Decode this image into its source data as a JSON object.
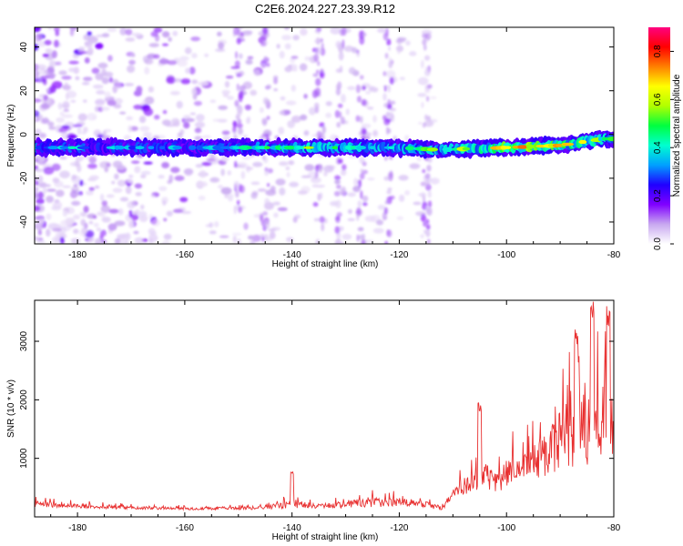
{
  "title": "C2E6.2024.227.23.39.R12",
  "chart_data": [
    {
      "id": "spectrogram",
      "type": "heatmap",
      "xlabel": "Height of straight line (km)",
      "ylabel": "Frequency (Hz)",
      "xlim": [
        -188,
        -80
      ],
      "ylim": [
        -50,
        49
      ],
      "xticks": [
        -180,
        -160,
        -140,
        -120,
        -100,
        -80
      ],
      "yticks": [
        -40,
        -20,
        0,
        20,
        40
      ],
      "colorbar": {
        "label": "Normalized spectral amplitude",
        "range": [
          0,
          0.9
        ],
        "ticks": [
          0.0,
          0.2,
          0.4,
          0.6,
          0.8
        ],
        "colormap": [
          "#ffffff",
          "#c8a8f0",
          "#8000ff",
          "#2000ff",
          "#00a0ff",
          "#00ffd0",
          "#00ff40",
          "#b0ff00",
          "#ffff00",
          "#ff8000",
          "#ff0000",
          "#ff0080"
        ]
      },
      "main_band": {
        "center_frequency_hz": [
          [
            -188,
            -6
          ],
          [
            -160,
            -6
          ],
          [
            -140,
            -6
          ],
          [
            -120,
            -6
          ],
          [
            -113,
            -7
          ],
          [
            -100,
            -6
          ],
          [
            -90,
            -5
          ],
          [
            -82,
            -2
          ]
        ],
        "peak_amplitude": [
          [
            -188,
            0.45
          ],
          [
            -160,
            0.4
          ],
          [
            -145,
            0.5
          ],
          [
            -140,
            0.6
          ],
          [
            -120,
            0.55
          ],
          [
            -110,
            0.6
          ],
          [
            -100,
            0.8
          ],
          [
            -97,
            0.9
          ],
          [
            -88,
            0.7
          ],
          [
            -82,
            0.6
          ]
        ]
      },
      "noise_region_hz_range": [
        -50,
        49
      ],
      "noise_region_x_extent": [
        -188,
        -113
      ]
    },
    {
      "id": "snr",
      "type": "line",
      "xlabel": "Height of straight line (km)",
      "ylabel": "SNR (10 * v/v)",
      "xlim": [
        -188,
        -80
      ],
      "ylim": [
        0,
        3700
      ],
      "xticks": [
        -180,
        -160,
        -140,
        -120,
        -100,
        -80
      ],
      "yticks": [
        1000,
        2000,
        3000
      ],
      "line_color": "#e83030",
      "envelope": {
        "x": [
          -188,
          -180,
          -170,
          -160,
          -150,
          -145,
          -140,
          -135,
          -130,
          -125,
          -120,
          -115,
          -112,
          -110,
          -108,
          -106,
          -104,
          -102,
          -100,
          -98,
          -96,
          -94,
          -92,
          -90,
          -88,
          -86,
          -84,
          -82,
          -80
        ],
        "baseline": [
          170,
          150,
          130,
          120,
          120,
          130,
          150,
          140,
          150,
          160,
          180,
          150,
          120,
          300,
          380,
          420,
          420,
          440,
          470,
          520,
          560,
          620,
          700,
          760,
          820,
          880,
          900,
          950,
          950
        ],
        "amplitude": [
          180,
          140,
          90,
          80,
          90,
          120,
          250,
          150,
          220,
          300,
          260,
          200,
          120,
          350,
          520,
          650,
          900,
          700,
          950,
          1000,
          1200,
          1350,
          1500,
          1900,
          2200,
          2700,
          2400,
          2300,
          2300
        ]
      },
      "spikes": [
        {
          "x": -140,
          "y": 780
        },
        {
          "x": -105,
          "y": 1980
        },
        {
          "x": -87,
          "y": 3250
        },
        {
          "x": -84,
          "y": 3700
        },
        {
          "x": -81,
          "y": 3600
        }
      ]
    }
  ]
}
